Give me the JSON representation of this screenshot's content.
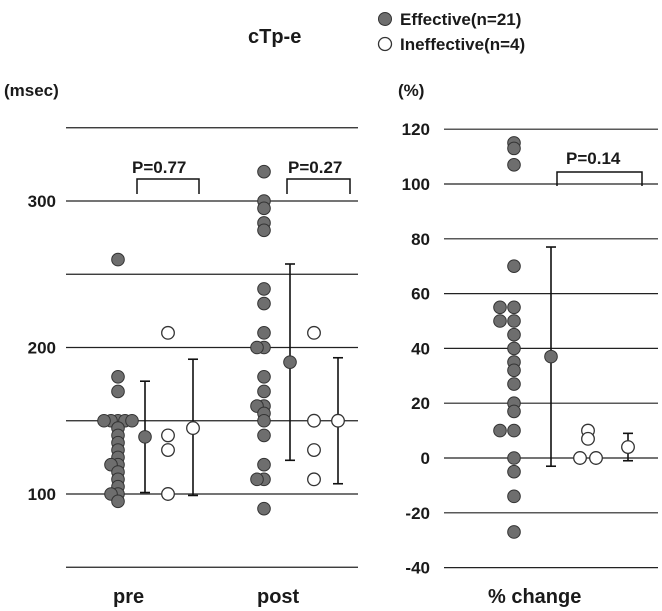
{
  "title": "cTp-e",
  "legend": {
    "effective": "Effective(n=21)",
    "ineffective": "Ineffective(n=4)"
  },
  "colors": {
    "effective_fill": "#6e6e6e",
    "ineffective_fill": "#ffffff",
    "stroke": "#333333"
  },
  "chart_data": [
    {
      "type": "scatter",
      "ylabel": "(msec)",
      "ylim": [
        50,
        350
      ],
      "yticks": [
        "100",
        "200",
        "300"
      ],
      "grid": true,
      "categories": [
        "pre",
        "post"
      ],
      "series": [
        {
          "name": "Effective(n=21)",
          "points": {
            "pre": [
              260,
              180,
              170,
              150,
              150,
              150,
              150,
              150,
              145,
              140,
              135,
              130,
              125,
              120,
              120,
              115,
              110,
              105,
              100,
              100,
              95
            ],
            "post": [
              320,
              300,
              295,
              285,
              280,
              240,
              230,
              210,
              200,
              200,
              180,
              170,
              160,
              160,
              155,
              150,
              140,
              120,
              110,
              110,
              90
            ]
          },
          "summary": {
            "pre": {
              "mean": 139,
              "low": 101,
              "high": 177
            },
            "post": {
              "mean": 190,
              "low": 123,
              "high": 257
            }
          }
        },
        {
          "name": "Ineffective(n=4)",
          "points": {
            "pre": [
              210,
              140,
              130,
              100
            ],
            "post": [
              210,
              150,
              130,
              110
            ]
          },
          "summary": {
            "pre": {
              "mean": 145,
              "low": 99,
              "high": 192
            },
            "post": {
              "mean": 150,
              "low": 107,
              "high": 193
            }
          }
        }
      ],
      "annotations": [
        "P=0.77",
        "P=0.27"
      ]
    },
    {
      "type": "scatter",
      "ylabel": "(%)",
      "ylim": [
        -40,
        120
      ],
      "yticks": [
        "120",
        "100",
        "80",
        "60",
        "40",
        "20",
        "0",
        "-20",
        "-40"
      ],
      "grid": true,
      "categories": [
        "% change"
      ],
      "series": [
        {
          "name": "Effective(n=21)",
          "points": [
            115,
            113,
            107,
            70,
            55,
            55,
            50,
            50,
            45,
            40,
            35,
            32,
            27,
            20,
            17,
            10,
            10,
            0,
            -5,
            -14,
            -27
          ],
          "summary": {
            "mean": 37,
            "low": -3,
            "high": 77
          }
        },
        {
          "name": "Ineffective(n=4)",
          "points": [
            10,
            7,
            0,
            0
          ],
          "summary": {
            "mean": 4,
            "low": -1,
            "high": 9
          }
        }
      ],
      "annotations": [
        "P=0.14"
      ]
    }
  ]
}
